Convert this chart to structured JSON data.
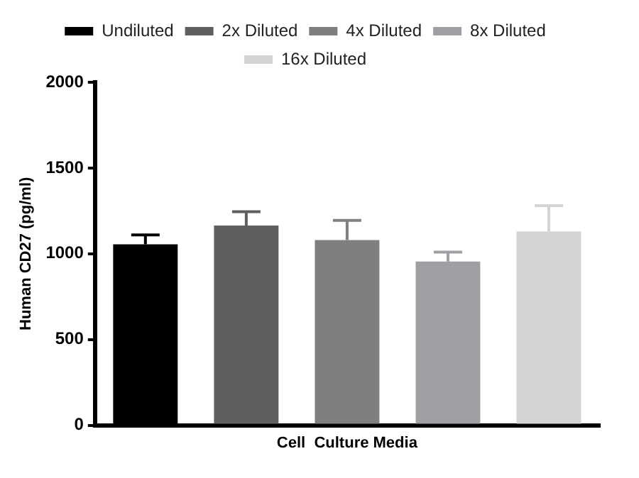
{
  "chart_data": {
    "type": "bar",
    "ylabel": "Human CD27 (pg/ml)",
    "xlabel": "Cell  Culture Media",
    "categories": [
      null
    ],
    "series": [
      {
        "name": "Undiluted",
        "color": "#000000",
        "values": [
          1055
        ],
        "errors": [
          [
            1055,
            1110
          ]
        ]
      },
      {
        "name": "2x Diluted",
        "color": "#5f5f5f",
        "values": [
          1165
        ],
        "errors": [
          [
            1165,
            1245
          ]
        ]
      },
      {
        "name": "4x Diluted",
        "color": "#7f7f7f",
        "values": [
          1080
        ],
        "errors": [
          [
            1080,
            1195
          ]
        ]
      },
      {
        "name": "8x Diluted",
        "color": "#a0a0a4",
        "values": [
          955
        ],
        "errors": [
          [
            955,
            1010
          ]
        ]
      },
      {
        "name": "16x Diluted",
        "color": "#d4d4d4",
        "values": [
          1130
        ],
        "errors": [
          [
            1130,
            1280
          ]
        ]
      }
    ],
    "ylim": [
      0,
      2000
    ],
    "yticks": [
      0,
      500,
      1000,
      1500,
      2000
    ],
    "grid": false,
    "legend": "top"
  }
}
